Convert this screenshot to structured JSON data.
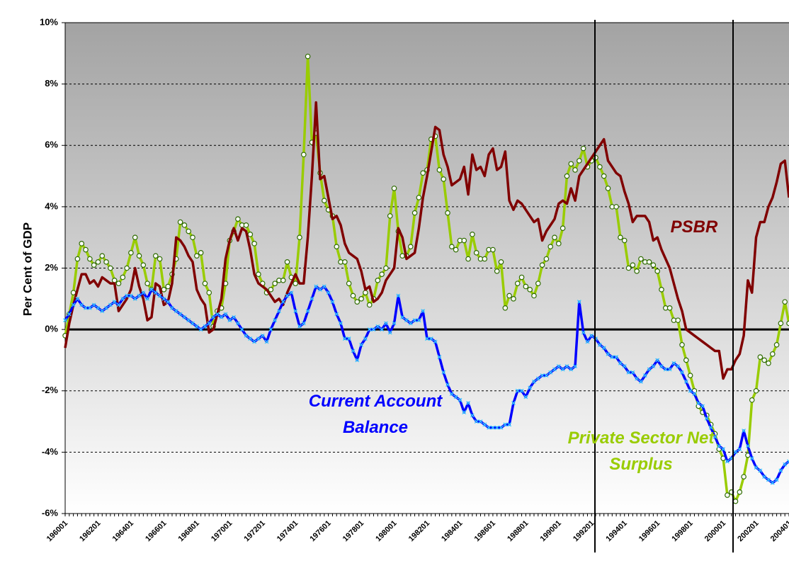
{
  "chart_data": {
    "type": "line",
    "ylabel": "Per Cent of GDP",
    "categories": [
      "196001",
      null,
      null,
      null,
      null,
      null,
      null,
      null,
      "196201",
      null,
      null,
      null,
      null,
      null,
      null,
      null,
      "196401",
      null,
      null,
      null,
      null,
      null,
      null,
      null,
      "196601",
      null,
      null,
      null,
      null,
      null,
      null,
      null,
      "196801",
      null,
      null,
      null,
      null,
      null,
      null,
      null,
      "197001",
      null,
      null,
      null,
      null,
      null,
      null,
      null,
      "197201",
      null,
      null,
      null,
      null,
      null,
      null,
      null,
      "197401",
      null,
      null,
      null,
      null,
      null,
      null,
      null,
      "197601",
      null,
      null,
      null,
      null,
      null,
      null,
      null,
      "197801",
      null,
      null,
      null,
      null,
      null,
      null,
      null,
      "198001",
      null,
      null,
      null,
      null,
      null,
      null,
      null,
      "198201",
      null,
      null,
      null,
      null,
      null,
      null,
      null,
      "198401",
      null,
      null,
      null,
      null,
      null,
      null,
      null,
      "198601",
      null,
      null,
      null,
      null,
      null,
      null,
      null,
      "198801",
      null,
      null,
      null,
      null,
      null,
      null,
      null,
      "199001",
      null,
      null,
      null,
      null,
      null,
      null,
      null,
      "199201",
      null,
      null,
      null,
      null,
      null,
      null,
      null,
      "199401",
      null,
      null,
      null,
      null,
      null,
      null,
      null,
      "199601",
      null,
      null,
      null,
      null,
      null,
      null,
      null,
      "199801",
      null,
      null,
      null,
      null,
      null,
      null,
      null,
      "200001",
      null,
      null,
      null,
      null,
      null,
      null,
      null,
      "200201",
      null,
      null,
      null,
      null,
      null,
      null,
      null,
      "200401"
    ],
    "series": [
      {
        "name": "Private Sector Net Surplus",
        "color": "#99cc00",
        "marker": "circle",
        "marker_color": "#2e6b00",
        "values": [
          -0.2,
          0.5,
          1.2,
          2.3,
          2.8,
          2.6,
          2.3,
          2.1,
          2.2,
          2.4,
          2.2,
          2.0,
          1.6,
          1.5,
          1.7,
          2.0,
          2.5,
          3.0,
          2.4,
          2.1,
          1.5,
          1.3,
          2.4,
          2.3,
          1.3,
          1.4,
          1.8,
          2.3,
          3.5,
          3.4,
          3.2,
          3.0,
          2.4,
          2.5,
          1.5,
          1.2,
          0.1,
          0.6,
          0.7,
          1.5,
          2.9,
          3.2,
          3.6,
          3.4,
          3.4,
          3.1,
          2.8,
          1.8,
          1.5,
          1.2,
          1.3,
          1.5,
          1.6,
          1.6,
          2.2,
          1.7,
          1.5,
          3.0,
          5.7,
          8.9,
          6.1,
          6.4,
          5.1,
          4.2,
          3.9,
          3.7,
          2.7,
          2.2,
          2.2,
          1.5,
          1.1,
          0.9,
          1.0,
          1.2,
          0.8,
          1.0,
          1.6,
          1.8,
          2.0,
          3.7,
          4.6,
          3.2,
          2.4,
          2.4,
          2.7,
          3.8,
          4.3,
          5.1,
          5.2,
          6.2,
          6.3,
          5.2,
          4.9,
          3.8,
          2.7,
          2.6,
          2.9,
          2.9,
          2.3,
          3.1,
          2.5,
          2.3,
          2.3,
          2.6,
          2.6,
          1.9,
          2.2,
          0.7,
          1.1,
          1.0,
          1.5,
          1.7,
          1.4,
          1.3,
          1.1,
          1.5,
          2.1,
          2.3,
          2.7,
          3.0,
          2.8,
          3.3,
          5.0,
          5.4,
          5.2,
          5.5,
          5.9,
          5.3,
          5.5,
          5.6,
          5.3,
          5.0,
          4.6,
          4.0,
          4.0,
          3.0,
          2.9,
          2.0,
          2.1,
          1.9,
          2.3,
          2.2,
          2.2,
          2.1,
          1.9,
          1.3,
          0.7,
          0.7,
          0.3,
          0.3,
          -0.5,
          -1.0,
          -1.5,
          -2.0,
          -2.5,
          -2.7,
          -2.8,
          -3.1,
          -3.4,
          -3.9,
          -4.2,
          -5.4,
          -5.3,
          -5.6,
          -5.3,
          -4.8,
          -4.1,
          -2.3,
          -2.0,
          -0.9,
          -1.0,
          -1.1,
          -0.8,
          -0.5,
          0.2,
          0.9,
          0.2
        ]
      },
      {
        "name": "PSBR",
        "color": "#800000",
        "values": [
          -0.6,
          0.2,
          0.8,
          1.3,
          1.8,
          1.8,
          1.5,
          1.6,
          1.4,
          1.7,
          1.6,
          1.5,
          1.5,
          0.6,
          0.8,
          1.0,
          1.3,
          2.0,
          1.4,
          1.0,
          0.3,
          0.4,
          1.5,
          1.4,
          0.8,
          0.9,
          1.5,
          3.0,
          2.9,
          2.7,
          2.4,
          2.2,
          1.3,
          1.0,
          0.8,
          -0.1,
          0.0,
          0.5,
          1.0,
          2.3,
          2.9,
          3.3,
          2.9,
          3.3,
          3.2,
          2.6,
          1.8,
          1.5,
          1.4,
          1.3,
          1.1,
          0.9,
          1.0,
          0.8,
          1.2,
          1.5,
          1.8,
          1.5,
          1.5,
          3.0,
          5.0,
          7.4,
          4.9,
          5.0,
          4.3,
          3.6,
          3.7,
          3.4,
          2.8,
          2.5,
          2.4,
          2.3,
          1.9,
          1.3,
          1.4,
          0.9,
          1.0,
          1.2,
          1.6,
          1.8,
          2.0,
          3.3,
          3.0,
          2.3,
          2.4,
          2.5,
          3.3,
          4.3,
          5.0,
          5.8,
          6.6,
          6.5,
          5.7,
          5.3,
          4.7,
          4.8,
          4.9,
          5.3,
          4.4,
          5.7,
          5.2,
          5.3,
          5.0,
          5.7,
          5.9,
          5.2,
          5.3,
          5.8,
          4.2,
          3.9,
          4.2,
          4.1,
          3.9,
          3.7,
          3.5,
          3.6,
          2.9,
          3.2,
          3.4,
          3.6,
          4.1,
          4.2,
          4.1,
          4.6,
          4.2,
          5.0,
          5.2,
          5.4,
          5.6,
          5.8,
          6.0,
          6.2,
          5.5,
          5.3,
          5.1,
          5.0,
          4.5,
          4.1,
          3.5,
          3.7,
          3.7,
          3.7,
          3.5,
          2.9,
          3.0,
          2.6,
          2.3,
          2.0,
          1.5,
          1.0,
          0.6,
          0.0,
          -0.1,
          -0.2,
          -0.3,
          -0.4,
          -0.5,
          -0.6,
          -0.7,
          -0.7,
          -1.6,
          -1.3,
          -1.3,
          -1.0,
          -0.8,
          -0.2,
          1.6,
          1.2,
          3.0,
          3.5,
          3.5,
          4.0,
          4.3,
          4.8,
          5.4,
          5.5,
          4.3
        ]
      },
      {
        "name": "Current Account Balance",
        "color": "#0000ff",
        "marker": "x",
        "marker_color": "#33ccff",
        "values": [
          0.3,
          0.5,
          0.8,
          1.0,
          0.8,
          0.7,
          0.7,
          0.8,
          0.7,
          0.6,
          0.7,
          0.8,
          0.9,
          0.8,
          1.0,
          1.1,
          1.1,
          1.0,
          1.1,
          1.2,
          1.0,
          1.3,
          1.2,
          1.1,
          1.0,
          0.9,
          0.7,
          0.6,
          0.5,
          0.4,
          0.3,
          0.2,
          0.1,
          0.0,
          0.1,
          0.2,
          0.4,
          0.5,
          0.4,
          0.5,
          0.3,
          0.4,
          0.2,
          0.0,
          -0.2,
          -0.3,
          -0.4,
          -0.3,
          -0.2,
          -0.4,
          0.0,
          0.3,
          0.6,
          0.9,
          1.1,
          1.2,
          0.6,
          0.1,
          0.2,
          0.6,
          1.0,
          1.4,
          1.3,
          1.4,
          1.2,
          0.9,
          0.5,
          0.2,
          -0.3,
          -0.3,
          -0.7,
          -1.0,
          -0.5,
          -0.3,
          0.0,
          0.0,
          0.1,
          0.0,
          0.2,
          -0.1,
          0.2,
          1.1,
          0.4,
          0.3,
          0.2,
          0.3,
          0.3,
          0.6,
          -0.3,
          -0.3,
          -0.4,
          -0.9,
          -1.4,
          -1.8,
          -2.1,
          -2.2,
          -2.3,
          -2.7,
          -2.4,
          -2.8,
          -3.0,
          -3.0,
          -3.1,
          -3.2,
          -3.2,
          -3.2,
          -3.2,
          -3.1,
          -3.1,
          -2.4,
          -2.0,
          -2.0,
          -2.2,
          -1.9,
          -1.7,
          -1.6,
          -1.5,
          -1.5,
          -1.4,
          -1.3,
          -1.2,
          -1.3,
          -1.2,
          -1.3,
          -1.2,
          0.9,
          -0.1,
          -0.4,
          -0.2,
          -0.3,
          -0.5,
          -0.6,
          -0.8,
          -0.9,
          -0.9,
          -1.1,
          -1.2,
          -1.4,
          -1.4,
          -1.6,
          -1.7,
          -1.5,
          -1.3,
          -1.2,
          -1.0,
          -1.2,
          -1.3,
          -1.3,
          -1.1,
          -1.2,
          -1.4,
          -1.7,
          -2.0,
          -2.1,
          -2.4,
          -2.5,
          -2.9,
          -3.2,
          -3.5,
          -3.8,
          -3.9,
          -4.3,
          -4.2,
          -4.0,
          -3.9,
          -3.3,
          -3.8,
          -4.2,
          -4.5,
          -4.6,
          -4.8,
          -4.9,
          -5.0,
          -4.9,
          -4.6,
          -4.4,
          -4.3
        ]
      }
    ],
    "ylim": [
      -6,
      10
    ],
    "yticks": [
      {
        "value": -6,
        "label": "-6%"
      },
      {
        "value": -4,
        "label": "-4%"
      },
      {
        "value": -2,
        "label": "-2%"
      },
      {
        "value": 0,
        "label": "0%"
      },
      {
        "value": 2,
        "label": "2%"
      },
      {
        "value": 4,
        "label": "4%"
      },
      {
        "value": 6,
        "label": "6%"
      },
      {
        "value": 8,
        "label": "8%"
      },
      {
        "value": 10,
        "label": "10%"
      }
    ],
    "grid": true
  }
}
